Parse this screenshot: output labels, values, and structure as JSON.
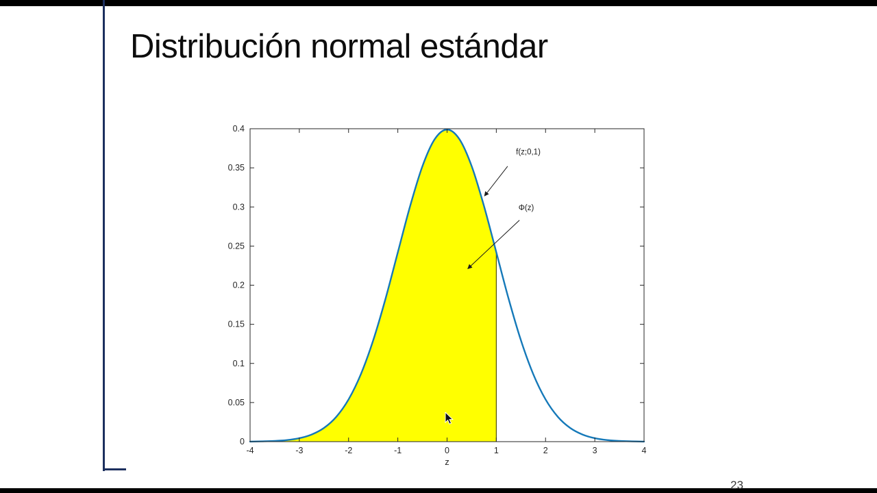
{
  "slide": {
    "title": "Distribución normal estándar",
    "page_number": "23"
  },
  "colors": {
    "accent_line": "#1c2f5e",
    "letterbox": "#000000",
    "background": "#ffffff"
  },
  "chart_data": {
    "type": "area",
    "title": "",
    "xlabel": "z",
    "ylabel": "",
    "xlim": [
      -4,
      4
    ],
    "ylim": [
      0,
      0.4
    ],
    "x_ticks": [
      "-4",
      "-3",
      "-2",
      "-1",
      "0",
      "1",
      "2",
      "3",
      "4"
    ],
    "y_ticks": [
      "0",
      "0.05",
      "0.1",
      "0.15",
      "0.2",
      "0.25",
      "0.3",
      "0.35",
      "0.4"
    ],
    "grid": false,
    "legend": "none",
    "axis_color": "#262626",
    "curve": {
      "name": "f(z;0,1)",
      "color": "#1579b9",
      "x": [
        -4,
        -3.75,
        -3.5,
        -3.25,
        -3,
        -2.75,
        -2.5,
        -2.25,
        -2,
        -1.75,
        -1.5,
        -1.25,
        -1,
        -0.75,
        -0.5,
        -0.25,
        0,
        0.25,
        0.5,
        0.75,
        1,
        1.25,
        1.5,
        1.75,
        2,
        2.25,
        2.5,
        2.75,
        3,
        3.25,
        3.5,
        3.75,
        4
      ],
      "y": [
        0.0001,
        0.0004,
        0.0009,
        0.002,
        0.0044,
        0.0091,
        0.0175,
        0.0317,
        0.054,
        0.0863,
        0.1295,
        0.1826,
        0.242,
        0.3011,
        0.3521,
        0.3867,
        0.3989,
        0.3867,
        0.3521,
        0.3011,
        0.242,
        0.1826,
        0.1295,
        0.0863,
        0.054,
        0.0317,
        0.0175,
        0.0091,
        0.0044,
        0.002,
        0.0009,
        0.0004,
        0.0001
      ]
    },
    "shaded_region": {
      "label": "Φ(z)",
      "from": -4,
      "to": 1,
      "fill_color": "#ffff00",
      "edge_color": "#4d4d00"
    },
    "annotations": [
      {
        "text": "f(z;0,1)",
        "text_x": 1.4,
        "text_y": 0.367,
        "arrow_from_x": 1.23,
        "arrow_from_y": 0.352,
        "arrow_to_x": 0.76,
        "arrow_to_y": 0.314
      },
      {
        "text": "Φ(z)",
        "text_x": 1.45,
        "text_y": 0.296,
        "arrow_from_x": 1.47,
        "arrow_from_y": 0.283,
        "arrow_to_x": 0.42,
        "arrow_to_y": 0.221
      }
    ]
  }
}
